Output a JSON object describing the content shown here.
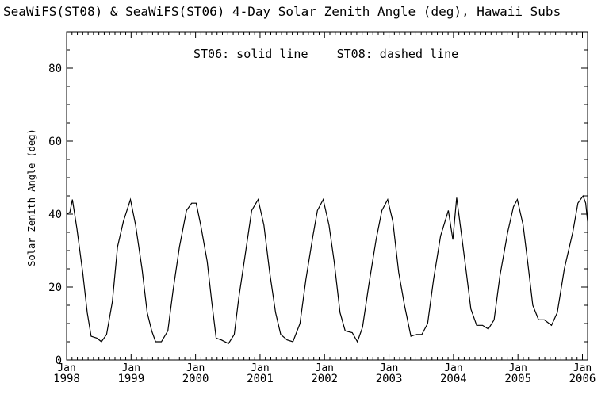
{
  "chart_data": {
    "type": "line",
    "title": "SeaWiFS(ST08) & SeaWiFS(ST06) 4-Day Solar Zenith Angle (deg), Hawaii Subs",
    "annotation": "ST06: solid line    ST08: dashed line",
    "xlabel": "",
    "ylabel": "Solar Zenith Angle (deg)",
    "xlim": [
      1998.0,
      2006.08
    ],
    "ylim": [
      0,
      90
    ],
    "yticks": [
      0,
      20,
      40,
      60,
      80
    ],
    "xticks": [
      {
        "x": 1998,
        "month": "Jan",
        "year": "1998"
      },
      {
        "x": 1999,
        "month": "Jan",
        "year": "1999"
      },
      {
        "x": 2000,
        "month": "Jan",
        "year": "2000"
      },
      {
        "x": 2001,
        "month": "Jan",
        "year": "2001"
      },
      {
        "x": 2002,
        "month": "Jan",
        "year": "2002"
      },
      {
        "x": 2003,
        "month": "Jan",
        "year": "2003"
      },
      {
        "x": 2004,
        "month": "Jan",
        "year": "2004"
      },
      {
        "x": 2005,
        "month": "Jan",
        "year": "2005"
      },
      {
        "x": 2006,
        "month": "Jan",
        "year": "2006"
      }
    ],
    "grid": false,
    "series": [
      {
        "name": "ST06",
        "style": "solid",
        "color": "#000000",
        "points": [
          [
            1998.0,
            40
          ],
          [
            1998.05,
            40.5
          ],
          [
            1998.09,
            44
          ],
          [
            1998.16,
            36
          ],
          [
            1998.25,
            24
          ],
          [
            1998.32,
            13
          ],
          [
            1998.38,
            6.5
          ],
          [
            1998.47,
            6
          ],
          [
            1998.54,
            5
          ],
          [
            1998.62,
            7
          ],
          [
            1998.71,
            16
          ],
          [
            1998.79,
            31
          ],
          [
            1998.88,
            38
          ],
          [
            1998.99,
            44
          ],
          [
            1999.07,
            37
          ],
          [
            1999.17,
            25
          ],
          [
            1999.25,
            13
          ],
          [
            1999.32,
            8
          ],
          [
            1999.38,
            5
          ],
          [
            1999.47,
            5
          ],
          [
            1999.57,
            8
          ],
          [
            1999.65,
            19
          ],
          [
            1999.75,
            31
          ],
          [
            1999.86,
            41
          ],
          [
            1999.94,
            43
          ],
          [
            2000.01,
            43
          ],
          [
            2000.08,
            37
          ],
          [
            2000.18,
            27
          ],
          [
            2000.25,
            16
          ],
          [
            2000.32,
            6
          ],
          [
            2000.4,
            5.5
          ],
          [
            2000.51,
            4.5
          ],
          [
            2000.6,
            7
          ],
          [
            2000.67,
            17
          ],
          [
            2000.78,
            30
          ],
          [
            2000.87,
            41
          ],
          [
            2000.97,
            44
          ],
          [
            2001.06,
            37
          ],
          [
            2001.15,
            24
          ],
          [
            2001.24,
            13
          ],
          [
            2001.32,
            7
          ],
          [
            2001.42,
            5.5
          ],
          [
            2001.51,
            5
          ],
          [
            2001.62,
            10
          ],
          [
            2001.71,
            22
          ],
          [
            2001.82,
            34
          ],
          [
            2001.89,
            41
          ],
          [
            2001.98,
            44
          ],
          [
            2002.07,
            37
          ],
          [
            2002.15,
            27
          ],
          [
            2002.24,
            13
          ],
          [
            2002.32,
            8
          ],
          [
            2002.43,
            7.5
          ],
          [
            2002.51,
            5
          ],
          [
            2002.59,
            9
          ],
          [
            2002.69,
            21
          ],
          [
            2002.8,
            33
          ],
          [
            2002.89,
            41
          ],
          [
            2002.98,
            44
          ],
          [
            2003.06,
            38
          ],
          [
            2003.15,
            24
          ],
          [
            2003.24,
            15
          ],
          [
            2003.34,
            6.5
          ],
          [
            2003.42,
            7
          ],
          [
            2003.51,
            7
          ],
          [
            2003.6,
            10
          ],
          [
            2003.69,
            22
          ],
          [
            2003.8,
            34
          ],
          [
            2003.92,
            41
          ],
          [
            2003.99,
            33
          ],
          [
            2004.05,
            44.5
          ],
          [
            2004.12,
            35
          ],
          [
            2004.2,
            24
          ],
          [
            2004.27,
            14
          ],
          [
            2004.36,
            9.5
          ],
          [
            2004.45,
            9.5
          ],
          [
            2004.54,
            8.5
          ],
          [
            2004.63,
            11
          ],
          [
            2004.72,
            23
          ],
          [
            2004.84,
            35
          ],
          [
            2004.93,
            42
          ],
          [
            2004.99,
            44
          ],
          [
            2005.08,
            37
          ],
          [
            2005.15,
            27
          ],
          [
            2005.23,
            15
          ],
          [
            2005.32,
            11
          ],
          [
            2005.41,
            11
          ],
          [
            2005.52,
            9.5
          ],
          [
            2005.61,
            13
          ],
          [
            2005.72,
            25
          ],
          [
            2005.85,
            35
          ],
          [
            2005.93,
            43
          ],
          [
            2006.01,
            45
          ],
          [
            2006.05,
            43
          ],
          [
            2006.08,
            38
          ]
        ]
      }
    ]
  }
}
